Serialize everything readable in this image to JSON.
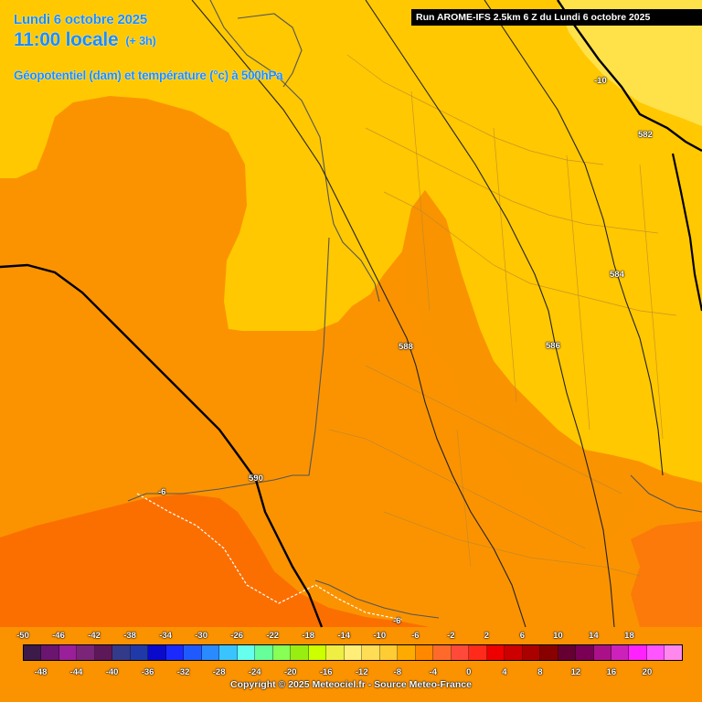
{
  "header": {
    "date": "Lundi 6 octobre 2025",
    "time": "11:00 locale",
    "lead": "(+ 3h)",
    "parameter": "Géopotentiel (dam) et température (°c) à 500hPa"
  },
  "run_banner": "Run AROME-IFS 2.5km 6 Z du Lundi 6 octobre 2025",
  "contour_labels": {
    "c588": "588",
    "c590": "590",
    "c586": "586",
    "c584": "584",
    "c582": "582",
    "iso_m10": "-10",
    "iso_m6_west": "-6",
    "iso_m6_south": "-6"
  },
  "legend": {
    "top_labels": [
      "-50",
      "-46",
      "-42",
      "-38",
      "-34",
      "-30",
      "-26",
      "-22",
      "-18",
      "-14",
      "-10",
      "-6",
      "-2",
      "2",
      "6",
      "10",
      "14",
      "18"
    ],
    "bottom_labels": [
      "-48",
      "-44",
      "-40",
      "-36",
      "-32",
      "-28",
      "-24",
      "-20",
      "-16",
      "-12",
      "-8",
      "-4",
      "0",
      "4",
      "8",
      "12",
      "16",
      "20"
    ],
    "colors": [
      "#3c1a4a",
      "#6a1570",
      "#9a1f9a",
      "#7a2578",
      "#5c1858",
      "#333a8a",
      "#1f3aa8",
      "#0a0acc",
      "#1a2aff",
      "#1f5aff",
      "#2a8aff",
      "#3ac4ff",
      "#66ffee",
      "#66ff99",
      "#88ff55",
      "#99ee11",
      "#ccff00",
      "#eeee44",
      "#ffee77",
      "#ffdd55",
      "#ffcc33",
      "#ffaa00",
      "#ff8800",
      "#ff6a2a",
      "#ff4a3a",
      "#ff2a1a",
      "#ee0000",
      "#cc0000",
      "#aa0000",
      "#880000",
      "#660033",
      "#7a0055",
      "#aa1188",
      "#cc22bb",
      "#ff22ff",
      "#ff55ff",
      "#ff88ee"
    ]
  },
  "copyright": "Copyright © 2025 Meteociel.fr - Source Meteo-France"
}
